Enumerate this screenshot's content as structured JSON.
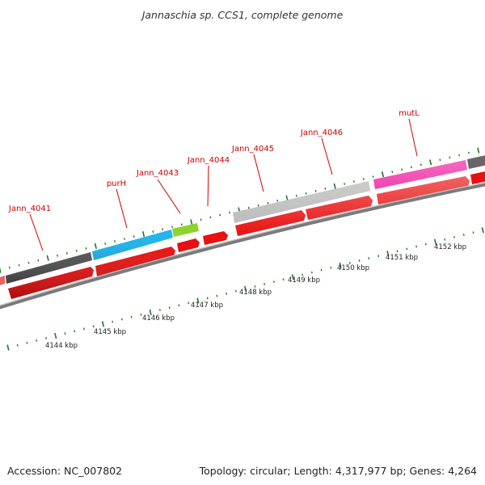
{
  "title": "Jannaschia sp. CCS1, complete genome",
  "footer": {
    "accession": "Accession: NC_007802",
    "summary": "Topology: circular; Length: 4,317,977 bp; Genes: 4,264"
  },
  "colors": {
    "cds": "#e81010",
    "backbone": "#7a7a7a",
    "tick": "#1f7a1f",
    "label": "#cc0000",
    "genes": {
      "Jann_4041": "#555555",
      "purH": "#19b5ee",
      "Jann_4043": "#8cd22a",
      "Jann_4046": "#bdbdbd",
      "mutL": "#ee1a9c"
    }
  },
  "gene_labels": [
    "Jann_4041",
    "purH",
    "Jann_4043",
    "Jann_4044",
    "Jann_4045",
    "Jann_4046",
    "mutL"
  ],
  "scale_labels": [
    "4144 kbp",
    "4145 kbp",
    "4146 kbp",
    "4147 kbp",
    "4148 kbp",
    "4149 kbp",
    "4150 kbp",
    "4151 kbp",
    "4152 kbp"
  ]
}
